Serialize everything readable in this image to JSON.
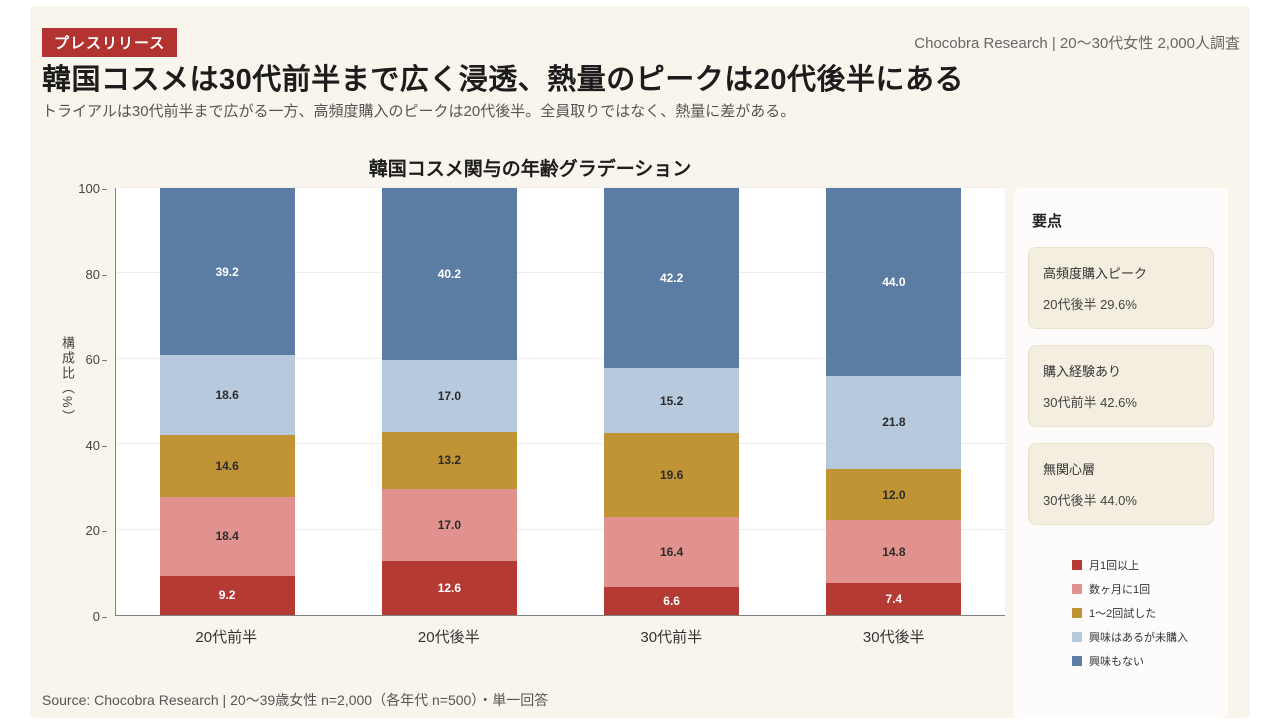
{
  "badge": "プレスリリース",
  "header_note": "Chocobra Research | 20〜30代女性 2,000人調査",
  "title": "韓国コスメは30代前半まで広く浸透、熱量のピークは20代後半にある",
  "subtitle": "トライアルは30代前半まで広がる一方、高頻度購入のピークは20代後半。全員取りではなく、熱量に差がある。",
  "chart_data": {
    "type": "bar",
    "stacked": true,
    "title": "韓国コスメ関与の年齢グラデーション",
    "ylabel": "構成比（%）",
    "ylim": [
      0,
      100
    ],
    "yticks": [
      0,
      20,
      40,
      60,
      80,
      100
    ],
    "grid": true,
    "legend_position": "right-bottom",
    "categories": [
      "20代前半",
      "20代後半",
      "30代前半",
      "30代後半"
    ],
    "series": [
      {
        "name": "月1回以上",
        "color": "#b53a33",
        "label_color": "#ffffff",
        "values": [
          9.2,
          12.6,
          6.6,
          7.4
        ]
      },
      {
        "name": "数ヶ月に1回",
        "color": "#e2928e",
        "label_color": "#2b2b2b",
        "values": [
          18.4,
          17.0,
          16.4,
          14.8
        ]
      },
      {
        "name": "1〜2回試した",
        "color": "#c09435",
        "label_color": "#2b2b2b",
        "values": [
          14.6,
          13.2,
          19.6,
          12.0
        ]
      },
      {
        "name": "興味はあるが未購入",
        "color": "#b7c9dd",
        "label_color": "#2b2b2b",
        "values": [
          18.6,
          17.0,
          15.2,
          21.8
        ]
      },
      {
        "name": "興味もない",
        "color": "#5c7da3",
        "label_color": "#ffffff",
        "values": [
          39.2,
          40.2,
          42.2,
          44.0
        ]
      }
    ]
  },
  "sidebar": {
    "title": "要点",
    "cards": [
      {
        "label": "高頻度購入ピーク",
        "value": "20代後半 29.6%"
      },
      {
        "label": "購入経験あり",
        "value": "30代前半 42.6%"
      },
      {
        "label": "無関心層",
        "value": "30代後半 44.0%"
      }
    ]
  },
  "footer": "Source: Chocobra Research | 20〜39歳女性 n=2,000（各年代 n=500）・単一回答"
}
